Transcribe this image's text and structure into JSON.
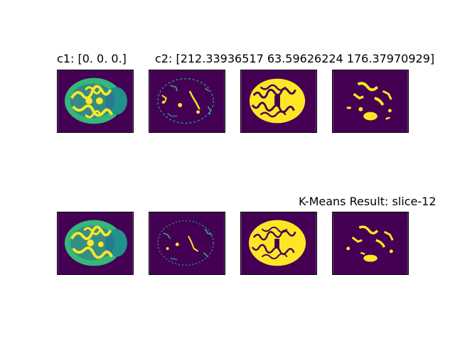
{
  "figure": {
    "title_c1": "c1: [0. 0. 0.]",
    "title_c2": "c2: [212.33936517  63.59626224 176.37970929]",
    "title_result": "K-Means Result: slice-12"
  },
  "colors": {
    "background": "#440154",
    "mid": "#21918c",
    "high": "#fde725",
    "teal_light": "#35b779",
    "teal_dark": "#31688e"
  },
  "panels": [
    {
      "row": 1,
      "col": 1,
      "style": "full-brain"
    },
    {
      "row": 1,
      "col": 2,
      "style": "sparse-edges"
    },
    {
      "row": 1,
      "col": 3,
      "style": "dense-yellow"
    },
    {
      "row": 1,
      "col": 4,
      "style": "sparse-yellow"
    },
    {
      "row": 2,
      "col": 1,
      "style": "full-brain"
    },
    {
      "row": 2,
      "col": 2,
      "style": "sparse-edges"
    },
    {
      "row": 2,
      "col": 3,
      "style": "dense-yellow"
    },
    {
      "row": 2,
      "col": 4,
      "style": "sparse-yellow"
    }
  ]
}
